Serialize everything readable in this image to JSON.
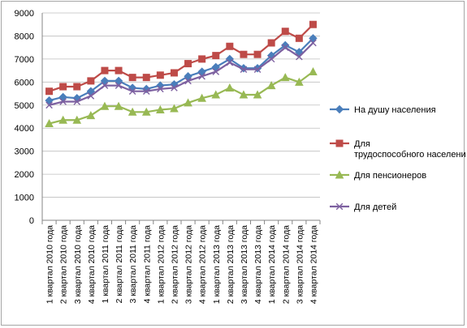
{
  "chart_data": {
    "type": "line",
    "title": "",
    "xlabel": "",
    "ylabel": "",
    "ylim": [
      0,
      9000
    ],
    "ytick_step": 1000,
    "grid": true,
    "legend_position": "right",
    "categories": [
      "1 квартал 2010 года",
      "2 квартал 2010 года",
      "3 квартал 2010 года",
      "4 квартал 2010 года",
      "1 квартал 2011 года",
      "2 квартал 2011 года",
      "3 квартал 2011 года",
      "4 квартал 2011 года",
      "1 квартал 2012 года",
      "2 квартал 2012 года",
      "3 квартал 2012 года",
      "4 квартал 2012 года",
      "1 квартал 2013 года",
      "2 квартал 2013 года",
      "3 квартал 2013 года",
      "4 квартал 2013 года",
      "1 квартал 2014 года",
      "2 квартал 2014 года",
      "3 квартал 2014 года",
      "4 квартал 2014 года"
    ],
    "series": [
      {
        "name": "На душу населения",
        "color": "#4a7ebb",
        "marker": "diamond",
        "values": [
          5200,
          5350,
          5300,
          5600,
          6050,
          6050,
          5750,
          5700,
          5850,
          5900,
          6250,
          6450,
          6650,
          7000,
          6600,
          6600,
          7150,
          7600,
          7300,
          7900
        ]
      },
      {
        "name": "Для трудоспособного населения",
        "color": "#be4b48",
        "marker": "square",
        "values": [
          5600,
          5800,
          5800,
          6050,
          6500,
          6500,
          6200,
          6200,
          6300,
          6400,
          6800,
          7000,
          7150,
          7550,
          7200,
          7200,
          7700,
          8200,
          7900,
          8500
        ]
      },
      {
        "name": "Для пенсионеров",
        "color": "#98b954",
        "marker": "triangle",
        "values": [
          4200,
          4350,
          4350,
          4550,
          4950,
          4950,
          4700,
          4700,
          4800,
          4850,
          5100,
          5300,
          5450,
          5750,
          5450,
          5450,
          5850,
          6200,
          6000,
          6450
        ]
      },
      {
        "name": "Для детей",
        "color": "#7d60a0",
        "marker": "x",
        "values": [
          5000,
          5150,
          5150,
          5400,
          5850,
          5850,
          5600,
          5600,
          5700,
          5750,
          6050,
          6250,
          6450,
          6850,
          6550,
          6550,
          7000,
          7500,
          7100,
          7700
        ]
      }
    ]
  }
}
